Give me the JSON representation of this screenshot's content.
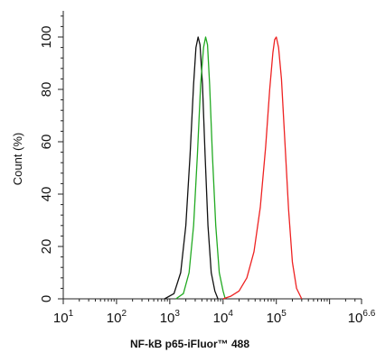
{
  "chart_data": {
    "type": "line",
    "title": "",
    "xlabel": "NF-kB p65-iFluor™ 488",
    "ylabel": "Count (%)",
    "x_scale": "log",
    "xlim": [
      10,
      3981071
    ],
    "ylim": [
      0,
      110
    ],
    "grid": false,
    "legend": "none",
    "x_ticks": [
      {
        "value": 10,
        "base": "10",
        "exp": "1"
      },
      {
        "value": 100,
        "base": "10",
        "exp": "2"
      },
      {
        "value": 1000,
        "base": "10",
        "exp": "3"
      },
      {
        "value": 10000,
        "base": "10",
        "exp": "4"
      },
      {
        "value": 100000,
        "base": "10",
        "exp": "5"
      },
      {
        "value": 3981071,
        "base": "10",
        "exp": "6.6"
      }
    ],
    "y_ticks": [
      0,
      20,
      40,
      60,
      80,
      100
    ],
    "series": [
      {
        "color": "#111111",
        "x": [
          800,
          1200,
          1600,
          2000,
          2400,
          2800,
          3100,
          3400,
          3700,
          4100,
          4600,
          5200,
          6000,
          7000,
          8000
        ],
        "y": [
          0,
          2,
          10,
          28,
          55,
          82,
          96,
          100,
          97,
          82,
          55,
          28,
          10,
          3,
          0
        ]
      },
      {
        "color": "#22aa22",
        "x": [
          1300,
          1800,
          2300,
          2800,
          3300,
          3800,
          4300,
          4700,
          5100,
          5600,
          6300,
          7300,
          8500,
          10000,
          11000
        ],
        "y": [
          0,
          2,
          10,
          28,
          55,
          82,
          96,
          100,
          97,
          82,
          55,
          28,
          10,
          3,
          0
        ]
      },
      {
        "color": "#ee2222",
        "x": [
          10000,
          14000,
          20000,
          28000,
          38000,
          50000,
          63000,
          75000,
          86000,
          93000,
          100000,
          110000,
          125000,
          145000,
          170000,
          200000,
          240000,
          300000
        ],
        "y": [
          0,
          1,
          3,
          8,
          18,
          35,
          58,
          80,
          94,
          99,
          100,
          96,
          84,
          60,
          34,
          14,
          4,
          0
        ]
      }
    ]
  }
}
